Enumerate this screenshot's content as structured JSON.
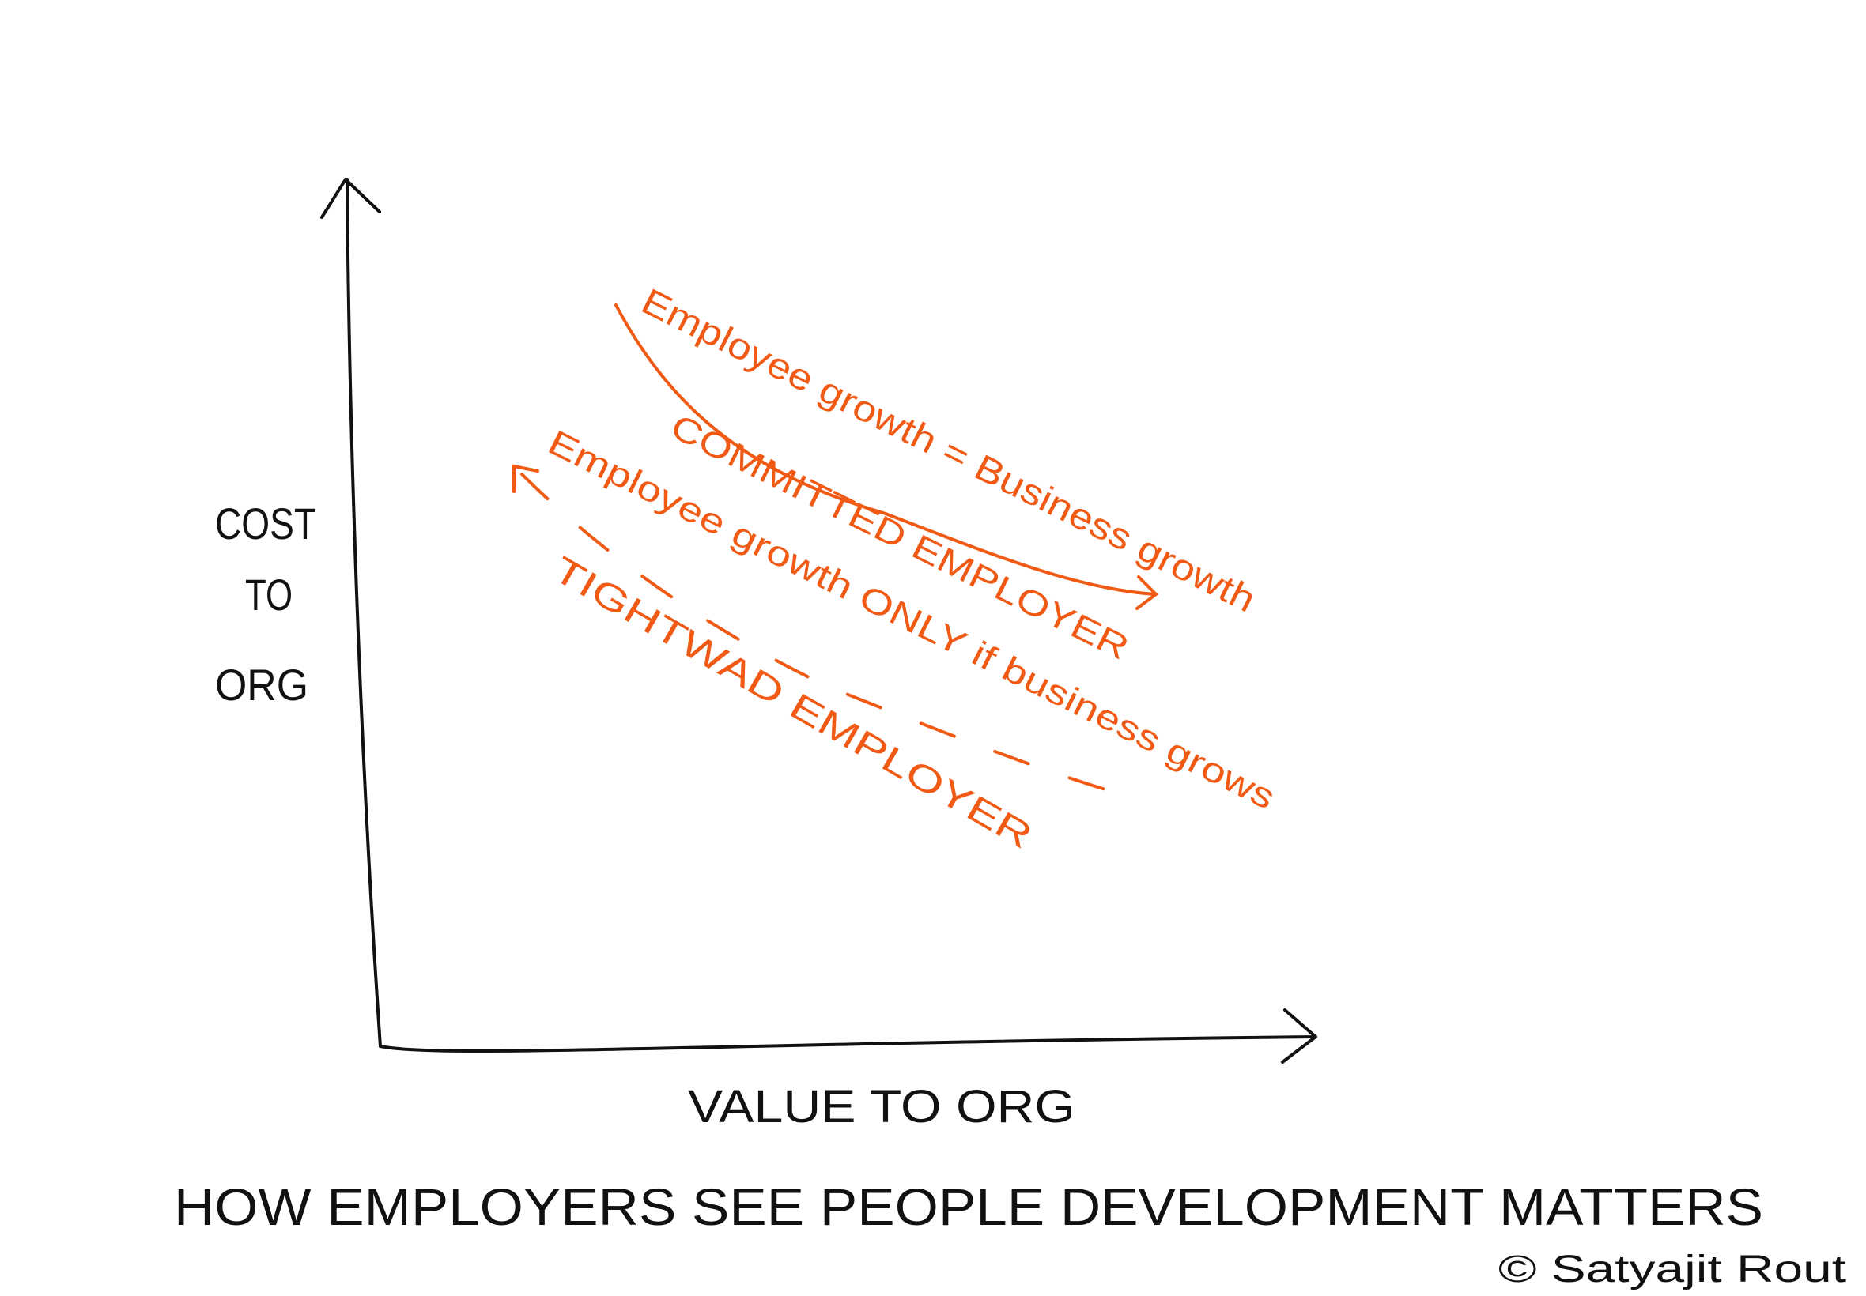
{
  "axes": {
    "y_label": [
      "COST",
      "TO",
      "ORG"
    ],
    "x_label": "VALUE TO ORG"
  },
  "curves": [
    {
      "label": "Employee growth = Business growth",
      "group": "COMMITTED EMPLOYER"
    },
    {
      "label": "Employee growth ONLY if business grows",
      "group": "TIGHTWAD EMPLOYER"
    }
  ],
  "title": "HOW EMPLOYERS SEE PEOPLE DEVELOPMENT MATTERS",
  "signature": "© Satyajit Rout"
}
